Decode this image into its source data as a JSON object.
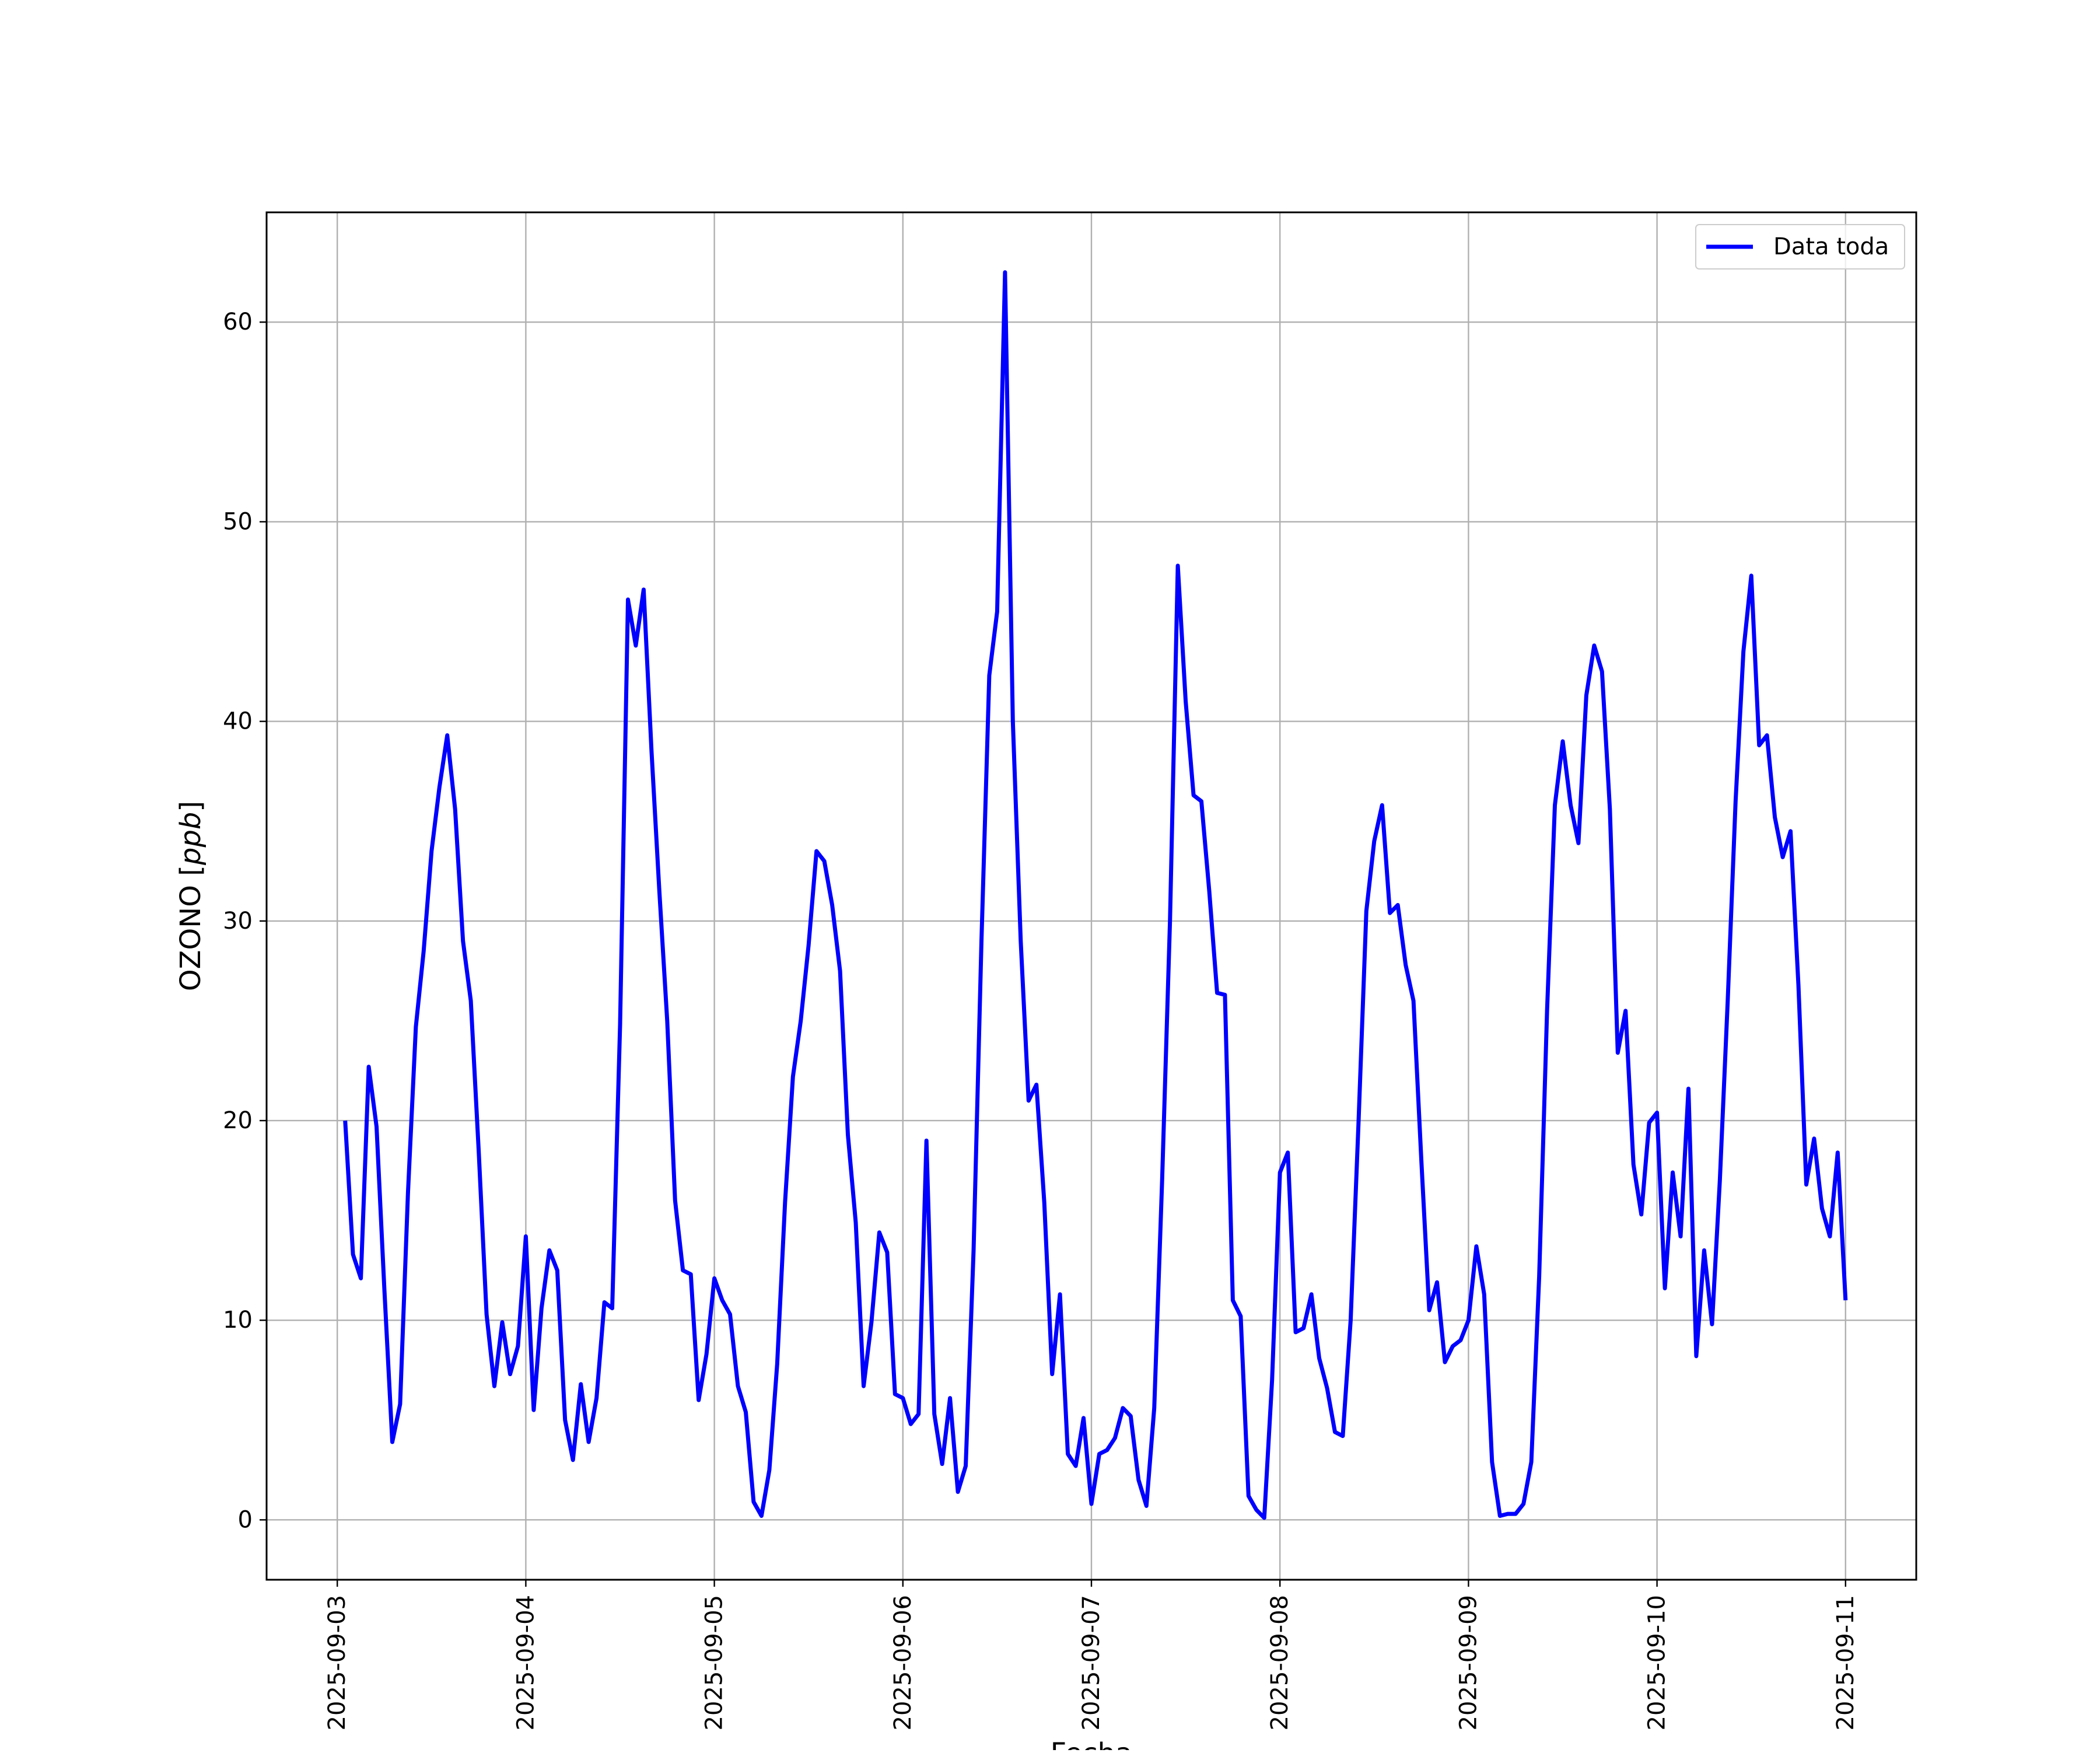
{
  "chart_data": {
    "type": "line",
    "title": "",
    "xlabel": "Fecha",
    "ylabel_prefix": "OZONO [",
    "ylabel_unit": "ppb",
    "ylabel_suffix": "]",
    "xlim": [
      "2025-09-02T15:00",
      "2025-09-11T09:00"
    ],
    "ylim": [
      -3,
      65.5
    ],
    "grid": true,
    "legend_position": "top-right",
    "xticks": [
      "2025-09-03",
      "2025-09-04",
      "2025-09-05",
      "2025-09-06",
      "2025-09-07",
      "2025-09-08",
      "2025-09-09",
      "2025-09-10",
      "2025-09-11"
    ],
    "yticks": [
      0,
      10,
      20,
      30,
      40,
      50,
      60
    ],
    "series": [
      {
        "name": "Data toda",
        "color": "#0000ff",
        "points": [
          [
            "2025-09-03T01:00",
            20.0
          ],
          [
            "2025-09-03T02:00",
            13.3
          ],
          [
            "2025-09-03T03:00",
            12.1
          ],
          [
            "2025-09-03T04:00",
            22.7
          ],
          [
            "2025-09-03T05:00",
            19.7
          ],
          [
            "2025-09-03T06:00",
            11.5
          ],
          [
            "2025-09-03T07:00",
            3.9
          ],
          [
            "2025-09-03T08:00",
            5.8
          ],
          [
            "2025-09-03T09:00",
            16.4
          ],
          [
            "2025-09-03T10:00",
            24.7
          ],
          [
            "2025-09-03T11:00",
            28.5
          ],
          [
            "2025-09-03T12:00",
            33.5
          ],
          [
            "2025-09-03T13:00",
            36.7
          ],
          [
            "2025-09-03T14:00",
            39.3
          ],
          [
            "2025-09-03T15:00",
            35.6
          ],
          [
            "2025-09-03T16:00",
            29.0
          ],
          [
            "2025-09-03T17:00",
            26.0
          ],
          [
            "2025-09-03T18:00",
            18.5
          ],
          [
            "2025-09-03T19:00",
            10.3
          ],
          [
            "2025-09-03T20:00",
            6.7
          ],
          [
            "2025-09-03T21:00",
            9.9
          ],
          [
            "2025-09-03T22:00",
            7.3
          ],
          [
            "2025-09-03T23:00",
            8.7
          ],
          [
            "2025-09-04T00:00",
            14.2
          ],
          [
            "2025-09-04T01:00",
            5.5
          ],
          [
            "2025-09-04T02:00",
            10.6
          ],
          [
            "2025-09-04T03:00",
            13.5
          ],
          [
            "2025-09-04T04:00",
            12.5
          ],
          [
            "2025-09-04T05:00",
            5.0
          ],
          [
            "2025-09-04T06:00",
            3.0
          ],
          [
            "2025-09-04T07:00",
            6.8
          ],
          [
            "2025-09-04T08:00",
            3.9
          ],
          [
            "2025-09-04T09:00",
            6.1
          ],
          [
            "2025-09-04T10:00",
            10.9
          ],
          [
            "2025-09-04T11:00",
            10.6
          ],
          [
            "2025-09-04T12:00",
            24.8
          ],
          [
            "2025-09-04T13:00",
            46.1
          ],
          [
            "2025-09-04T14:00",
            43.8
          ],
          [
            "2025-09-04T15:00",
            46.6
          ],
          [
            "2025-09-04T16:00",
            38.5
          ],
          [
            "2025-09-04T17:00",
            31.5
          ],
          [
            "2025-09-04T18:00",
            25.0
          ],
          [
            "2025-09-04T19:00",
            16.0
          ],
          [
            "2025-09-04T20:00",
            12.5
          ],
          [
            "2025-09-04T21:00",
            12.3
          ],
          [
            "2025-09-04T22:00",
            6.0
          ],
          [
            "2025-09-04T23:00",
            8.3
          ],
          [
            "2025-09-05T00:00",
            12.1
          ],
          [
            "2025-09-05T01:00",
            11.0
          ],
          [
            "2025-09-05T02:00",
            10.3
          ],
          [
            "2025-09-05T03:00",
            6.7
          ],
          [
            "2025-09-05T04:00",
            5.4
          ],
          [
            "2025-09-05T05:00",
            0.9
          ],
          [
            "2025-09-05T06:00",
            0.2
          ],
          [
            "2025-09-05T07:00",
            2.5
          ],
          [
            "2025-09-05T08:00",
            7.8
          ],
          [
            "2025-09-05T09:00",
            15.9
          ],
          [
            "2025-09-05T10:00",
            22.2
          ],
          [
            "2025-09-05T11:00",
            25.0
          ],
          [
            "2025-09-05T12:00",
            28.8
          ],
          [
            "2025-09-05T13:00",
            33.5
          ],
          [
            "2025-09-05T14:00",
            33.0
          ],
          [
            "2025-09-05T15:00",
            30.8
          ],
          [
            "2025-09-05T16:00",
            27.5
          ],
          [
            "2025-09-05T17:00",
            19.3
          ],
          [
            "2025-09-05T18:00",
            14.9
          ],
          [
            "2025-09-05T19:00",
            6.7
          ],
          [
            "2025-09-05T20:00",
            9.9
          ],
          [
            "2025-09-05T21:00",
            14.4
          ],
          [
            "2025-09-05T22:00",
            13.4
          ],
          [
            "2025-09-05T23:00",
            6.3
          ],
          [
            "2025-09-06T00:00",
            6.1
          ],
          [
            "2025-09-06T01:00",
            4.8
          ],
          [
            "2025-09-06T02:00",
            5.3
          ],
          [
            "2025-09-06T03:00",
            19.0
          ],
          [
            "2025-09-06T04:00",
            5.3
          ],
          [
            "2025-09-06T05:00",
            2.8
          ],
          [
            "2025-09-06T06:00",
            6.1
          ],
          [
            "2025-09-06T07:00",
            1.4
          ],
          [
            "2025-09-06T08:00",
            2.7
          ],
          [
            "2025-09-06T09:00",
            13.5
          ],
          [
            "2025-09-06T10:00",
            29.0
          ],
          [
            "2025-09-06T11:00",
            42.3
          ],
          [
            "2025-09-06T12:00",
            45.5
          ],
          [
            "2025-09-06T13:00",
            62.5
          ],
          [
            "2025-09-06T14:00",
            40.0
          ],
          [
            "2025-09-06T15:00",
            29.0
          ],
          [
            "2025-09-06T16:00",
            21.0
          ],
          [
            "2025-09-06T17:00",
            21.8
          ],
          [
            "2025-09-06T18:00",
            15.9
          ],
          [
            "2025-09-06T19:00",
            7.3
          ],
          [
            "2025-09-06T20:00",
            11.3
          ],
          [
            "2025-09-06T21:00",
            3.3
          ],
          [
            "2025-09-06T22:00",
            2.7
          ],
          [
            "2025-09-06T23:00",
            5.1
          ],
          [
            "2025-09-07T00:00",
            0.8
          ],
          [
            "2025-09-07T01:00",
            3.3
          ],
          [
            "2025-09-07T02:00",
            3.5
          ],
          [
            "2025-09-07T03:00",
            4.1
          ],
          [
            "2025-09-07T04:00",
            5.6
          ],
          [
            "2025-09-07T05:00",
            5.2
          ],
          [
            "2025-09-07T06:00",
            2.0
          ],
          [
            "2025-09-07T07:00",
            0.7
          ],
          [
            "2025-09-07T08:00",
            5.6
          ],
          [
            "2025-09-07T09:00",
            17.0
          ],
          [
            "2025-09-07T10:00",
            30.0
          ],
          [
            "2025-09-07T11:00",
            47.8
          ],
          [
            "2025-09-07T12:00",
            41.0
          ],
          [
            "2025-09-07T13:00",
            36.3
          ],
          [
            "2025-09-07T14:00",
            36.0
          ],
          [
            "2025-09-07T15:00",
            31.5
          ],
          [
            "2025-09-07T16:00",
            26.4
          ],
          [
            "2025-09-07T17:00",
            26.3
          ],
          [
            "2025-09-07T18:00",
            11.0
          ],
          [
            "2025-09-07T19:00",
            10.2
          ],
          [
            "2025-09-07T20:00",
            1.2
          ],
          [
            "2025-09-07T21:00",
            0.5
          ],
          [
            "2025-09-07T22:00",
            0.1
          ],
          [
            "2025-09-07T23:00",
            7.0
          ],
          [
            "2025-09-08T00:00",
            17.4
          ],
          [
            "2025-09-08T01:00",
            18.4
          ],
          [
            "2025-09-08T02:00",
            9.4
          ],
          [
            "2025-09-08T03:00",
            9.6
          ],
          [
            "2025-09-08T04:00",
            11.3
          ],
          [
            "2025-09-08T05:00",
            8.1
          ],
          [
            "2025-09-08T06:00",
            6.6
          ],
          [
            "2025-09-08T07:00",
            4.4
          ],
          [
            "2025-09-08T08:00",
            4.2
          ],
          [
            "2025-09-08T09:00",
            10.0
          ],
          [
            "2025-09-08T10:00",
            19.9
          ],
          [
            "2025-09-08T11:00",
            30.5
          ],
          [
            "2025-09-08T12:00",
            34.0
          ],
          [
            "2025-09-08T13:00",
            35.8
          ],
          [
            "2025-09-08T14:00",
            30.4
          ],
          [
            "2025-09-08T15:00",
            30.8
          ],
          [
            "2025-09-08T16:00",
            27.8
          ],
          [
            "2025-09-08T17:00",
            26.0
          ],
          [
            "2025-09-08T18:00",
            18.0
          ],
          [
            "2025-09-08T19:00",
            10.5
          ],
          [
            "2025-09-08T20:00",
            11.9
          ],
          [
            "2025-09-08T21:00",
            7.9
          ],
          [
            "2025-09-08T22:00",
            8.7
          ],
          [
            "2025-09-08T23:00",
            9.0
          ],
          [
            "2025-09-09T00:00",
            10.0
          ],
          [
            "2025-09-09T01:00",
            13.7
          ],
          [
            "2025-09-09T02:00",
            11.3
          ],
          [
            "2025-09-09T03:00",
            2.9
          ],
          [
            "2025-09-09T04:00",
            0.2
          ],
          [
            "2025-09-09T05:00",
            0.3
          ],
          [
            "2025-09-09T06:00",
            0.3
          ],
          [
            "2025-09-09T07:00",
            0.8
          ],
          [
            "2025-09-09T08:00",
            2.9
          ],
          [
            "2025-09-09T09:00",
            12.2
          ],
          [
            "2025-09-09T10:00",
            25.5
          ],
          [
            "2025-09-09T11:00",
            35.8
          ],
          [
            "2025-09-09T12:00",
            39.0
          ],
          [
            "2025-09-09T13:00",
            35.8
          ],
          [
            "2025-09-09T14:00",
            33.9
          ],
          [
            "2025-09-09T15:00",
            41.3
          ],
          [
            "2025-09-09T16:00",
            43.8
          ],
          [
            "2025-09-09T17:00",
            42.5
          ],
          [
            "2025-09-09T18:00",
            35.6
          ],
          [
            "2025-09-09T19:00",
            23.4
          ],
          [
            "2025-09-09T20:00",
            25.5
          ],
          [
            "2025-09-09T21:00",
            17.8
          ],
          [
            "2025-09-09T22:00",
            15.3
          ],
          [
            "2025-09-09T23:00",
            19.9
          ],
          [
            "2025-09-10T00:00",
            20.4
          ],
          [
            "2025-09-10T01:00",
            11.6
          ],
          [
            "2025-09-10T02:00",
            17.4
          ],
          [
            "2025-09-10T03:00",
            14.2
          ],
          [
            "2025-09-10T04:00",
            21.6
          ],
          [
            "2025-09-10T05:00",
            8.2
          ],
          [
            "2025-09-10T06:00",
            13.5
          ],
          [
            "2025-09-10T07:00",
            9.8
          ],
          [
            "2025-09-10T08:00",
            17.0
          ],
          [
            "2025-09-10T09:00",
            26.0
          ],
          [
            "2025-09-10T10:00",
            36.0
          ],
          [
            "2025-09-10T11:00",
            43.5
          ],
          [
            "2025-09-10T12:00",
            47.3
          ],
          [
            "2025-09-10T13:00",
            38.8
          ],
          [
            "2025-09-10T14:00",
            39.3
          ],
          [
            "2025-09-10T15:00",
            35.2
          ],
          [
            "2025-09-10T16:00",
            33.2
          ],
          [
            "2025-09-10T17:00",
            34.5
          ],
          [
            "2025-09-10T18:00",
            26.8
          ],
          [
            "2025-09-10T19:00",
            16.8
          ],
          [
            "2025-09-10T20:00",
            19.1
          ],
          [
            "2025-09-10T21:00",
            15.6
          ],
          [
            "2025-09-10T22:00",
            14.2
          ],
          [
            "2025-09-10T23:00",
            18.4
          ],
          [
            "2025-09-11T00:00",
            11.0
          ]
        ]
      }
    ]
  }
}
